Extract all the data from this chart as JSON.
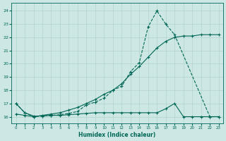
{
  "xlabel": "Humidex (Indice chaleur)",
  "bg_color": "#cde8e4",
  "grid_color": "#b0d4cc",
  "line_color": "#006655",
  "x_ticks": [
    0,
    1,
    2,
    3,
    4,
    5,
    6,
    7,
    8,
    9,
    10,
    11,
    12,
    13,
    14,
    15,
    16,
    17,
    18,
    19,
    20,
    21,
    22,
    23
  ],
  "y_ticks": [
    16,
    17,
    18,
    19,
    20,
    21,
    22,
    23,
    24
  ],
  "ylim": [
    15.5,
    24.6
  ],
  "xlim": [
    -0.5,
    23.5
  ],
  "series1_x": [
    0,
    1,
    2,
    3,
    4,
    5,
    6,
    7,
    8,
    9,
    10,
    11,
    12,
    13,
    14,
    15,
    16,
    17,
    18,
    22,
    23
  ],
  "series1_y": [
    17.0,
    16.3,
    16.0,
    16.05,
    16.1,
    16.15,
    16.25,
    16.4,
    16.9,
    17.1,
    17.4,
    18.0,
    18.3,
    19.4,
    20.1,
    22.8,
    24.0,
    23.0,
    22.2,
    16.0,
    16.0
  ],
  "series2_x": [
    0,
    1,
    2,
    3,
    4,
    5,
    6,
    7,
    8,
    9,
    10,
    11,
    12,
    13,
    14,
    15,
    16,
    17,
    18,
    19,
    20,
    21,
    22,
    23
  ],
  "series2_y": [
    16.2,
    16.1,
    16.0,
    16.1,
    16.2,
    16.3,
    16.5,
    16.7,
    17.0,
    17.3,
    17.7,
    18.0,
    18.5,
    19.2,
    19.8,
    20.5,
    21.2,
    21.7,
    22.0,
    22.1,
    22.1,
    22.2,
    22.2,
    22.2
  ],
  "series3_x": [
    0,
    1,
    2,
    3,
    4,
    5,
    6,
    7,
    8,
    9,
    10,
    11,
    12,
    13,
    14,
    15,
    16,
    17,
    18,
    19,
    20,
    21,
    22,
    23
  ],
  "series3_y": [
    17.0,
    16.3,
    16.05,
    16.05,
    16.1,
    16.1,
    16.15,
    16.2,
    16.25,
    16.3,
    16.3,
    16.3,
    16.3,
    16.3,
    16.3,
    16.3,
    16.3,
    16.6,
    17.0,
    16.0,
    16.0,
    16.0,
    16.0,
    16.0
  ]
}
